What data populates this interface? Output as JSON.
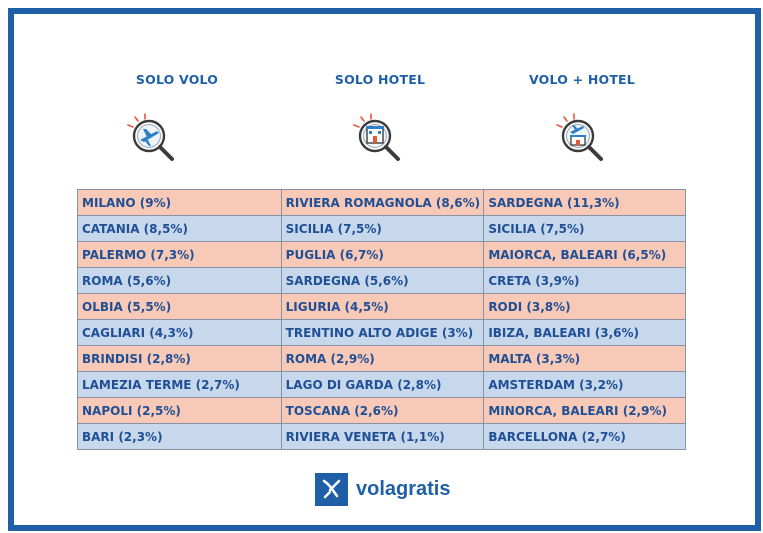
{
  "headers": {
    "solo_volo": "SOLO VOLO",
    "solo_hotel": "SOLO HOTEL",
    "volo_hotel": "VOLO + HOTEL"
  },
  "icons": [
    "plane-search-icon",
    "hotel-search-icon",
    "plane-hotel-search-icon"
  ],
  "rows": [
    {
      "volo": "MILANO (9%)",
      "hotel": "RIVIERA ROMAGNOLA (8,6%)",
      "combo": "SARDEGNA (11,3%)"
    },
    {
      "volo": "CATANIA (8,5%)",
      "hotel": "SICILIA (7,5%)",
      "combo": "SICILIA (7,5%)"
    },
    {
      "volo": "PALERMO (7,3%)",
      "hotel": "PUGLIA (6,7%)",
      "combo": "MAIORCA, BALEARI (6,5%)"
    },
    {
      "volo": "ROMA (5,6%)",
      "hotel": "SARDEGNA (5,6%)",
      "combo": "CRETA (3,9%)"
    },
    {
      "volo": "OLBIA (5,5%)",
      "hotel": "LIGURIA (4,5%)",
      "combo": "RODI (3,8%)"
    },
    {
      "volo": "CAGLIARI (4,3%)",
      "hotel": "TRENTINO ALTO ADIGE (3%)",
      "combo": "IBIZA, BALEARI (3,6%)"
    },
    {
      "volo": "BRINDISI (2,8%)",
      "hotel": "ROMA (2,9%)",
      "combo": "MALTA (3,3%)"
    },
    {
      "volo": "LAMEZIA TERME (2,7%)",
      "hotel": "LAGO DI GARDA (2,8%)",
      "combo": "AMSTERDAM (3,2%)"
    },
    {
      "volo": "NAPOLI (2,5%)",
      "hotel": "TOSCANA (2,6%)",
      "combo": "MINORCA, BALEARI (2,9%)"
    },
    {
      "volo": "BARI (2,3%)",
      "hotel": "RIVIERA VENETA (1,1%)",
      "combo": "BARCELLONA (2,7%)"
    }
  ],
  "logo": {
    "text": "volagratis"
  },
  "colors": {
    "frame": "#1f5fa8",
    "row_pink": "#f8c9b7",
    "row_blue": "#c7d8ec",
    "text": "#1f4f95"
  }
}
